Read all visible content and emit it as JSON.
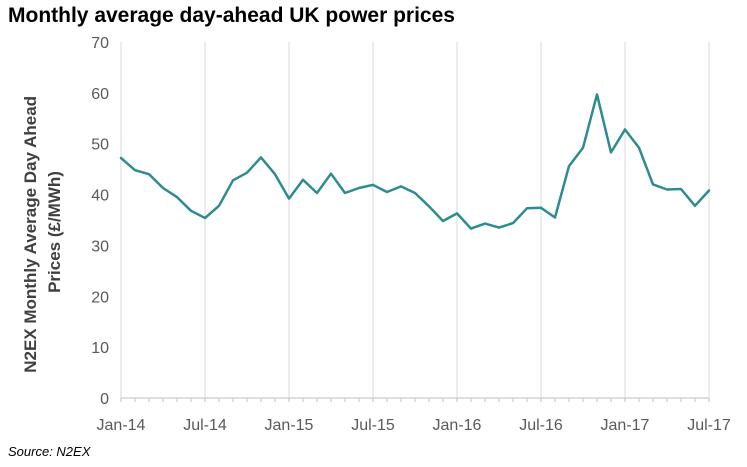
{
  "chart_title": "Monthly average day-ahead UK power prices",
  "source_note": "Source: N2EX",
  "colors": {
    "line": "#2e8b8f",
    "grid": "#d9d9d9",
    "text": "#595959"
  },
  "chart_data": {
    "type": "line",
    "title": "Monthly average day-ahead UK power prices",
    "xlabel": "",
    "ylabel_lines": [
      "N2EX Monthly Average Day Ahead",
      "Prices (£/MWh)"
    ],
    "ylim": [
      0,
      70
    ],
    "yticks": [
      0,
      10,
      20,
      30,
      40,
      50,
      60,
      70
    ],
    "xtick_labels": [
      "Jan-14",
      "Jul-14",
      "Jan-15",
      "Jul-15",
      "Jan-16",
      "Jul-16",
      "Jan-17",
      "Jul-17"
    ],
    "grid": "vertical",
    "x": [
      "Jan-14",
      "Feb-14",
      "Mar-14",
      "Apr-14",
      "May-14",
      "Jun-14",
      "Jul-14",
      "Aug-14",
      "Sep-14",
      "Oct-14",
      "Nov-14",
      "Dec-14",
      "Jan-15",
      "Feb-15",
      "Mar-15",
      "Apr-15",
      "May-15",
      "Jun-15",
      "Jul-15",
      "Aug-15",
      "Sep-15",
      "Oct-15",
      "Nov-15",
      "Dec-15",
      "Jan-16",
      "Feb-16",
      "Mar-16",
      "Apr-16",
      "May-16",
      "Jun-16",
      "Jul-16",
      "Aug-16",
      "Sep-16",
      "Oct-16",
      "Nov-16",
      "Dec-16",
      "Jan-17",
      "Feb-17",
      "Mar-17",
      "Apr-17",
      "May-17",
      "Jun-17",
      "Jul-17"
    ],
    "series": [
      {
        "values": [
          47.2,
          44.8,
          44.0,
          41.3,
          39.5,
          36.8,
          35.4,
          37.8,
          42.8,
          44.3,
          47.3,
          44.0,
          39.2,
          42.9,
          40.3,
          44.1,
          40.3,
          41.3,
          41.9,
          40.5,
          41.6,
          40.3,
          37.7,
          34.8,
          36.3,
          33.3,
          34.3,
          33.5,
          34.4,
          37.3,
          37.4,
          35.5,
          45.6,
          49.2,
          59.7,
          48.3,
          52.8,
          49.2,
          42.0,
          41.0,
          41.1,
          37.8,
          40.8
        ]
      }
    ]
  }
}
